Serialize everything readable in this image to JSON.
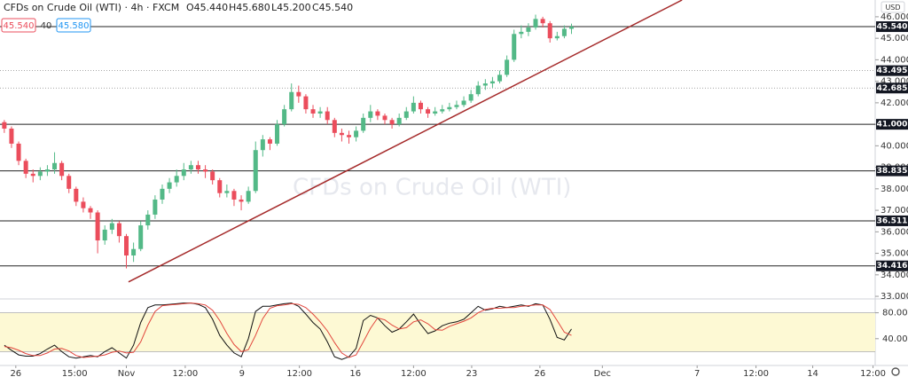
{
  "header": {
    "symbol": "CFDs on Crude Oil (WTI) · 4h · FXCM",
    "ohlc": [
      "O45.440",
      "H45.680",
      "L45.200",
      "C45.540"
    ],
    "bid": "45.540",
    "spread": "40",
    "ask": "45.580",
    "currency": "USD"
  },
  "chart_data": [
    {
      "type": "candlestick",
      "watermark": "CFDs on Crude Oil (WTI)",
      "up_color": "#53b987",
      "down_color": "#eb4d5c",
      "open": [
        41.1,
        40.8,
        40.1,
        39.3,
        38.7,
        38.6,
        38.8,
        38.9,
        39.2,
        38.6,
        38.0,
        37.4,
        37.1,
        36.9,
        35.6,
        36.1,
        36.4,
        35.8,
        34.9,
        35.2,
        36.3,
        36.8,
        37.5,
        38.0,
        38.3,
        38.6,
        38.9,
        39.1,
        38.9,
        38.8,
        38.4,
        37.8,
        37.9,
        37.5,
        37.4,
        37.9,
        39.8,
        40.3,
        40.1,
        41.0,
        41.7,
        42.5,
        42.3,
        41.7,
        41.5,
        41.6,
        41.2,
        40.6,
        40.5,
        40.4,
        40.7,
        41.3,
        41.6,
        41.4,
        41.2,
        41.0,
        41.3,
        41.6,
        42.0,
        41.7,
        41.5,
        41.6,
        41.7,
        41.8,
        41.9,
        42.1,
        42.4,
        42.8,
        42.9,
        43.0,
        43.3,
        44.0,
        45.2,
        45.3,
        45.5,
        45.9,
        45.7,
        45.0,
        45.1,
        45.44
      ],
      "high": [
        41.2,
        40.9,
        40.2,
        39.4,
        38.9,
        39.0,
        39.1,
        39.7,
        39.3,
        38.7,
        38.1,
        37.6,
        37.2,
        37.0,
        36.3,
        36.6,
        36.5,
        35.9,
        35.5,
        36.5,
        37.0,
        37.7,
        38.2,
        38.5,
        38.9,
        39.2,
        39.3,
        39.3,
        39.1,
        38.9,
        38.5,
        38.2,
        38.0,
        37.7,
        38.1,
        40.2,
        40.5,
        40.4,
        41.2,
        41.9,
        42.9,
        42.8,
        42.4,
        41.9,
        41.8,
        41.8,
        41.3,
        40.8,
        40.7,
        40.9,
        41.5,
        41.9,
        41.7,
        41.5,
        41.3,
        41.5,
        41.8,
        42.3,
        42.1,
        41.8,
        41.8,
        41.9,
        42.0,
        42.1,
        42.3,
        42.6,
        43.0,
        43.1,
        43.2,
        43.5,
        44.2,
        45.4,
        45.6,
        45.7,
        46.1,
        46.0,
        45.8,
        45.3,
        45.6,
        45.68
      ],
      "low": [
        40.6,
        39.9,
        39.1,
        38.5,
        38.3,
        38.4,
        38.6,
        38.7,
        38.4,
        37.8,
        37.2,
        36.9,
        36.6,
        35.0,
        35.4,
        35.9,
        35.5,
        34.3,
        34.6,
        35.1,
        36.1,
        36.6,
        37.3,
        37.8,
        38.1,
        38.4,
        38.7,
        38.7,
        38.5,
        38.2,
        37.6,
        37.6,
        37.2,
        37.0,
        37.3,
        37.8,
        39.5,
        39.8,
        40.0,
        40.9,
        41.6,
        42.0,
        41.5,
        41.3,
        41.3,
        41.0,
        40.4,
        40.2,
        40.1,
        40.2,
        40.6,
        41.1,
        41.2,
        41.0,
        40.8,
        40.9,
        41.2,
        41.5,
        41.5,
        41.3,
        41.4,
        41.5,
        41.6,
        41.7,
        41.8,
        42.0,
        42.3,
        42.6,
        42.7,
        42.9,
        43.2,
        43.9,
        45.0,
        45.1,
        45.4,
        45.5,
        44.8,
        44.9,
        45.0,
        45.2
      ],
      "close": [
        40.8,
        40.1,
        39.3,
        38.7,
        38.6,
        38.8,
        38.9,
        39.2,
        38.6,
        38.0,
        37.4,
        37.1,
        36.9,
        35.6,
        36.1,
        36.4,
        35.8,
        34.9,
        35.2,
        36.3,
        36.8,
        37.5,
        38.0,
        38.3,
        38.6,
        38.9,
        39.1,
        38.9,
        38.8,
        38.4,
        37.8,
        37.9,
        37.5,
        37.4,
        37.9,
        39.8,
        40.3,
        40.1,
        41.0,
        41.7,
        42.5,
        42.3,
        41.7,
        41.5,
        41.6,
        41.2,
        40.6,
        40.5,
        40.4,
        40.7,
        41.3,
        41.6,
        41.4,
        41.2,
        41.0,
        41.3,
        41.6,
        42.0,
        41.7,
        41.5,
        41.6,
        41.7,
        41.8,
        41.9,
        42.1,
        42.4,
        42.8,
        42.9,
        43.0,
        43.3,
        44.0,
        45.2,
        45.3,
        45.5,
        45.9,
        45.7,
        45.0,
        45.1,
        45.44,
        45.54
      ],
      "xlim": [
        -0.6,
        121.3
      ],
      "ylim": [
        32.92,
        46.78
      ],
      "yticks": [
        {
          "value": 33,
          "label": "33.000"
        },
        {
          "value": 34,
          "label": "34.000"
        },
        {
          "value": 35,
          "label": "35.000"
        },
        {
          "value": 36,
          "label": "36.000"
        },
        {
          "value": 37,
          "label": "37.000"
        },
        {
          "value": 38,
          "label": "38.000"
        },
        {
          "value": 39,
          "label": "39.000"
        },
        {
          "value": 40,
          "label": "40.000"
        },
        {
          "value": 41,
          "label": "41.000"
        },
        {
          "value": 42,
          "label": "42.000"
        },
        {
          "value": 43,
          "label": "43.000"
        },
        {
          "value": 44,
          "label": "44.000"
        },
        {
          "value": 45,
          "label": "45.000"
        },
        {
          "value": 46,
          "label": "46.000"
        }
      ],
      "xticks": [
        {
          "value": 1.6,
          "label": "26"
        },
        {
          "value": 9.8,
          "label": "15:00"
        },
        {
          "value": 17,
          "label": "Nov"
        },
        {
          "value": 25.2,
          "label": "12:00"
        },
        {
          "value": 33.1,
          "label": "9"
        },
        {
          "value": 41.1,
          "label": "12:00"
        },
        {
          "value": 48.9,
          "label": "16"
        },
        {
          "value": 57,
          "label": "12:00"
        },
        {
          "value": 65.1,
          "label": "23"
        },
        {
          "value": 74.6,
          "label": "26"
        },
        {
          "value": 83.3,
          "label": "Dec"
        },
        {
          "value": 96.5,
          "label": "7"
        },
        {
          "value": 104.7,
          "label": "12:00"
        },
        {
          "value": 112.6,
          "label": "14"
        },
        {
          "value": 121,
          "label": "12:00"
        }
      ],
      "levels": [
        {
          "value": 45.54,
          "label": "45.540",
          "style": "solid"
        },
        {
          "value": 43.495,
          "label": "43.495",
          "style": "dotted"
        },
        {
          "value": 42.685,
          "label": "42.685",
          "style": "dotted"
        },
        {
          "value": 41,
          "label": "41.000",
          "style": "solid"
        },
        {
          "value": 38.835,
          "label": "38.835",
          "style": "solid"
        },
        {
          "value": 36.511,
          "label": "36.511",
          "style": "solid"
        },
        {
          "value": 34.416,
          "label": "34.416",
          "style": "solid"
        }
      ],
      "trendline": {
        "x": [
          17.3,
          94.4
        ],
        "y": [
          33.67,
          46.78
        ],
        "color": "#a52a2a"
      }
    },
    {
      "type": "line",
      "ylim": [
        0,
        100
      ],
      "yticks": [
        {
          "value": 80,
          "label": "80.00"
        },
        {
          "value": 40,
          "label": "40.00"
        }
      ],
      "band": [
        20,
        80
      ],
      "band_color": "#fdf9d4",
      "series": [
        {
          "color": "#111111",
          "values": [
            30,
            22,
            15,
            13,
            13,
            17,
            24,
            30,
            20,
            12,
            10,
            12,
            14,
            12,
            20,
            26,
            18,
            10,
            30,
            65,
            88,
            92,
            92,
            93,
            94,
            95,
            95,
            93,
            88,
            70,
            45,
            30,
            18,
            12,
            40,
            82,
            90,
            90,
            92,
            94,
            95,
            90,
            78,
            65,
            55,
            35,
            12,
            8,
            12,
            25,
            68,
            76,
            72,
            60,
            50,
            55,
            66,
            78,
            62,
            48,
            52,
            60,
            64,
            66,
            70,
            80,
            90,
            84,
            86,
            90,
            88,
            90,
            92,
            90,
            94,
            92,
            70,
            42,
            38,
            55
          ]
        },
        {
          "color": "#e2453c",
          "values": [
            28,
            26,
            22,
            17,
            14,
            14,
            18,
            24,
            25,
            21,
            14,
            11,
            12,
            13,
            15,
            19,
            21,
            18,
            19,
            35,
            61,
            82,
            91,
            92,
            93,
            94,
            95,
            94,
            92,
            84,
            68,
            48,
            31,
            20,
            23,
            45,
            71,
            87,
            91,
            92,
            94,
            93,
            88,
            78,
            66,
            52,
            34,
            18,
            11,
            15,
            35,
            56,
            72,
            69,
            61,
            55,
            57,
            66,
            69,
            63,
            54,
            53,
            59,
            63,
            67,
            72,
            80,
            85,
            87,
            87,
            88,
            88,
            90,
            91,
            92,
            92,
            85,
            68,
            50,
            45
          ]
        }
      ]
    }
  ]
}
